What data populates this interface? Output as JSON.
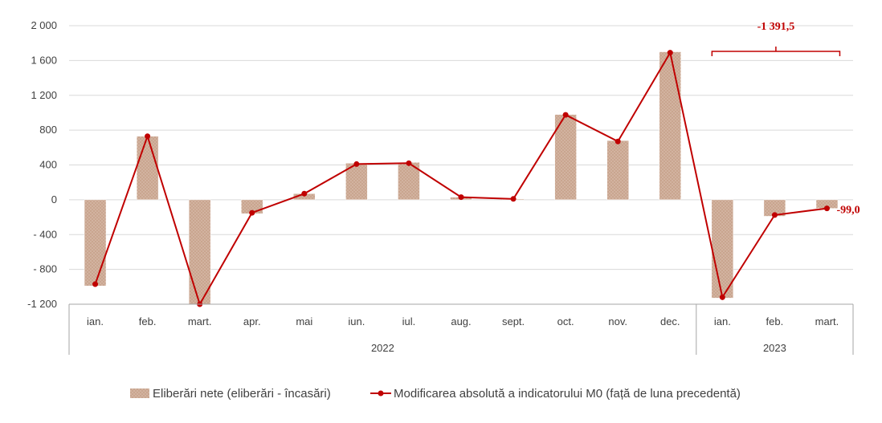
{
  "chart_data": {
    "type": "bar",
    "title": "",
    "xlabel": "",
    "ylabel": "",
    "ylim": [
      -1200,
      2000
    ],
    "yticks": [
      -1200,
      -800,
      -400,
      0,
      400,
      800,
      1200,
      1600,
      2000
    ],
    "ytick_labels": [
      "-1 200",
      "- 800",
      "- 400",
      "0",
      "400",
      "800",
      "1 200",
      "1 600",
      "2 000"
    ],
    "categories": [
      "ian.",
      "feb.",
      "mart.",
      "apr.",
      "mai",
      "iun.",
      "iul.",
      "aug.",
      "sept.",
      "oct.",
      "nov.",
      "dec.",
      "ian.",
      "feb.",
      "mart."
    ],
    "groups": [
      {
        "label": "2022",
        "count": 12
      },
      {
        "label": "2023",
        "count": 3
      }
    ],
    "series": [
      {
        "name": "Eliberări nete (eliberări - încasări)",
        "kind": "bar",
        "color": "#c9a58f",
        "values": [
          -990,
          730,
          -1200,
          -160,
          70,
          420,
          430,
          30,
          10,
          980,
          680,
          1700,
          -1130,
          -190,
          -100
        ]
      },
      {
        "name": "Modificarea absolută a indicatorului M0 (față de luna precedentă)",
        "kind": "line",
        "color": "#c00000",
        "values": [
          -970,
          730,
          -1200,
          -150,
          70,
          410,
          420,
          30,
          10,
          975,
          670,
          1690,
          -1120,
          -175,
          -99
        ]
      }
    ],
    "annotations": {
      "bracket_label": "-1 391,5",
      "last_label": "-99,0"
    },
    "legend_position": "bottom",
    "grid": true
  }
}
